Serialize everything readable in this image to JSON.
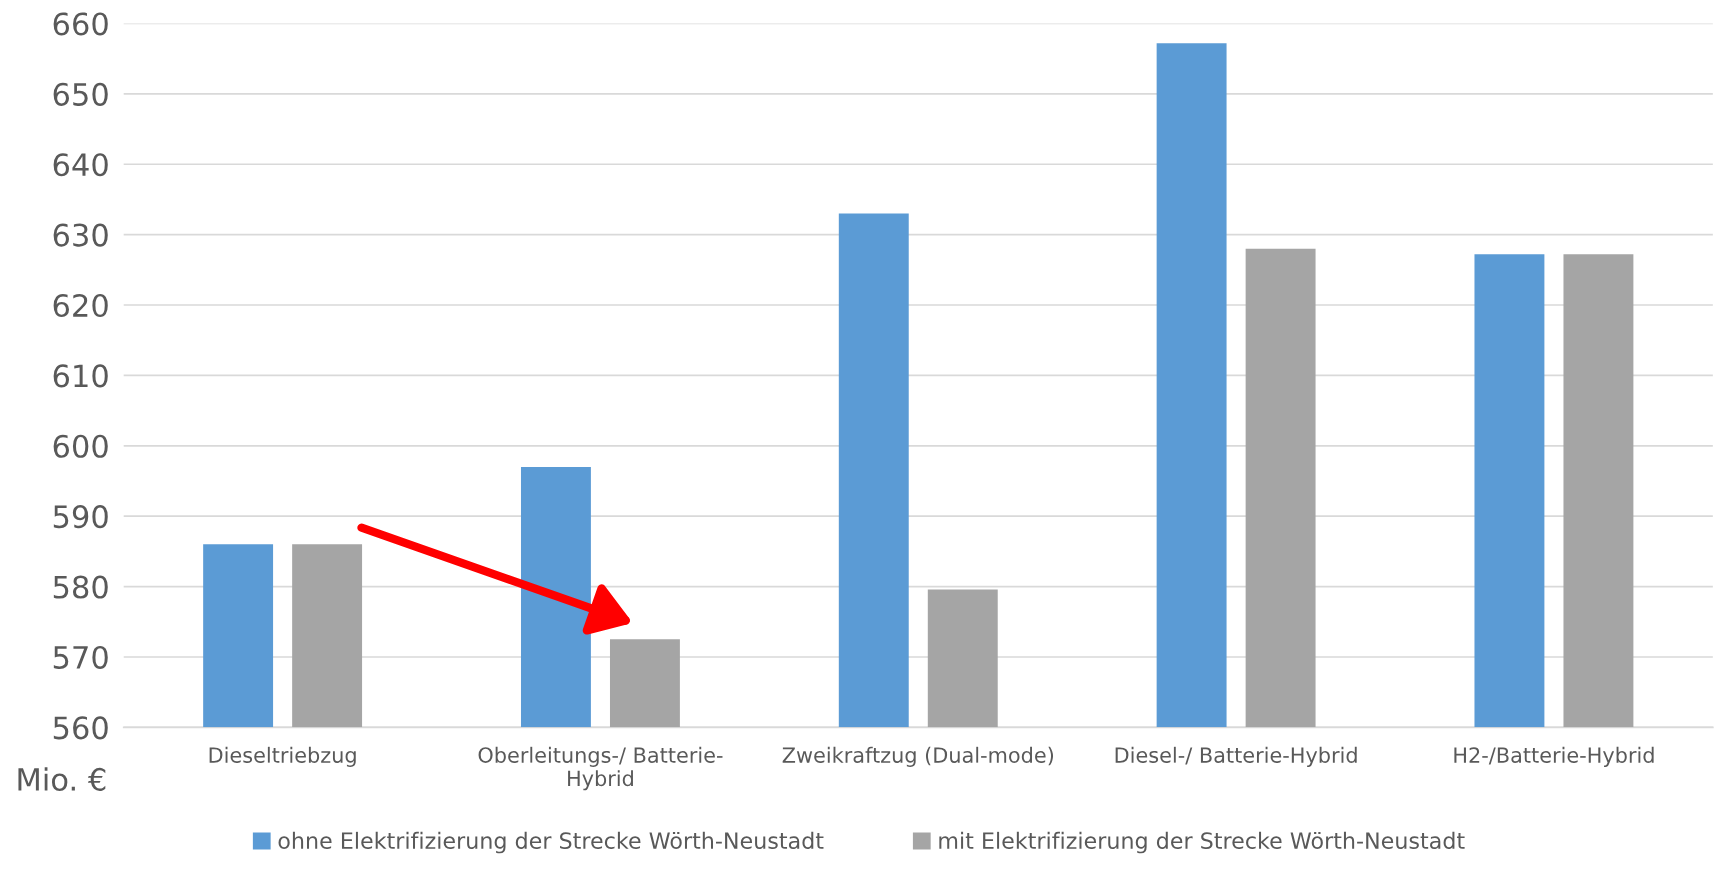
{
  "chart_data": {
    "type": "bar",
    "categories": [
      "Dieseltriebzug",
      "Oberleitungs-/ Batterie-\nHybrid",
      "Zweikraftzug (Dual-mode)",
      "Diesel-/ Batterie-Hybrid",
      "H2-/Batterie-Hybrid"
    ],
    "series": [
      {
        "name": "ohne Elektrifizierung der Strecke Wörth-Neustadt",
        "color": "#5b9bd5",
        "values": [
          586,
          597,
          633,
          657.2,
          627.2
        ]
      },
      {
        "name": "mit Elektrifizierung der Strecke Wörth-Neustadt",
        "color": "#a5a5a5",
        "values": [
          586,
          572.5,
          579.6,
          628,
          627.2
        ]
      }
    ],
    "ylabel": "Mio. €",
    "ylim": [
      560,
      660
    ],
    "yticks": [
      560,
      570,
      580,
      590,
      600,
      610,
      620,
      630,
      640,
      650,
      660
    ],
    "grid": "y",
    "legend": "bottom"
  }
}
